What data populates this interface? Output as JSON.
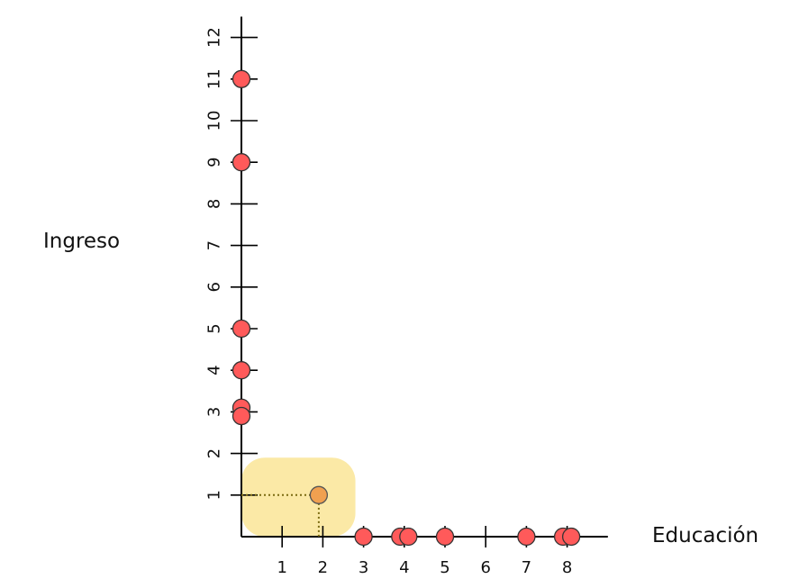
{
  "chart_data": {
    "type": "scatter",
    "title": "",
    "xlabel": "Educación",
    "ylabel": "Ingreso",
    "xlim": [
      0,
      9
    ],
    "ylim": [
      0,
      12.5
    ],
    "x_ticks": [
      1,
      2,
      3,
      4,
      5,
      6,
      7,
      8
    ],
    "y_ticks": [
      1,
      2,
      3,
      4,
      5,
      6,
      7,
      8,
      9,
      10,
      11,
      12
    ],
    "grid": false,
    "points": [
      {
        "x": 0,
        "y": 11
      },
      {
        "x": 0,
        "y": 9
      },
      {
        "x": 0,
        "y": 5
      },
      {
        "x": 0,
        "y": 4
      },
      {
        "x": 0,
        "y": 3.1
      },
      {
        "x": 0,
        "y": 2.9
      },
      {
        "x": 3,
        "y": 0
      },
      {
        "x": 3.9,
        "y": 0
      },
      {
        "x": 4.1,
        "y": 0
      },
      {
        "x": 5,
        "y": 0
      },
      {
        "x": 7,
        "y": 0
      },
      {
        "x": 7.9,
        "y": 0
      },
      {
        "x": 8.1,
        "y": 0
      }
    ],
    "highlighted_point": {
      "x": 1.9,
      "y": 1
    },
    "highlight_region": {
      "x": [
        0,
        2.8
      ],
      "y": [
        0,
        1.9
      ]
    },
    "colors": {
      "point": "#ff5a5a",
      "highlighted_point": "#f0a050",
      "highlight_region": "#fbe9a6",
      "guide_line": "#7a6a10",
      "axis": "#000000"
    }
  }
}
